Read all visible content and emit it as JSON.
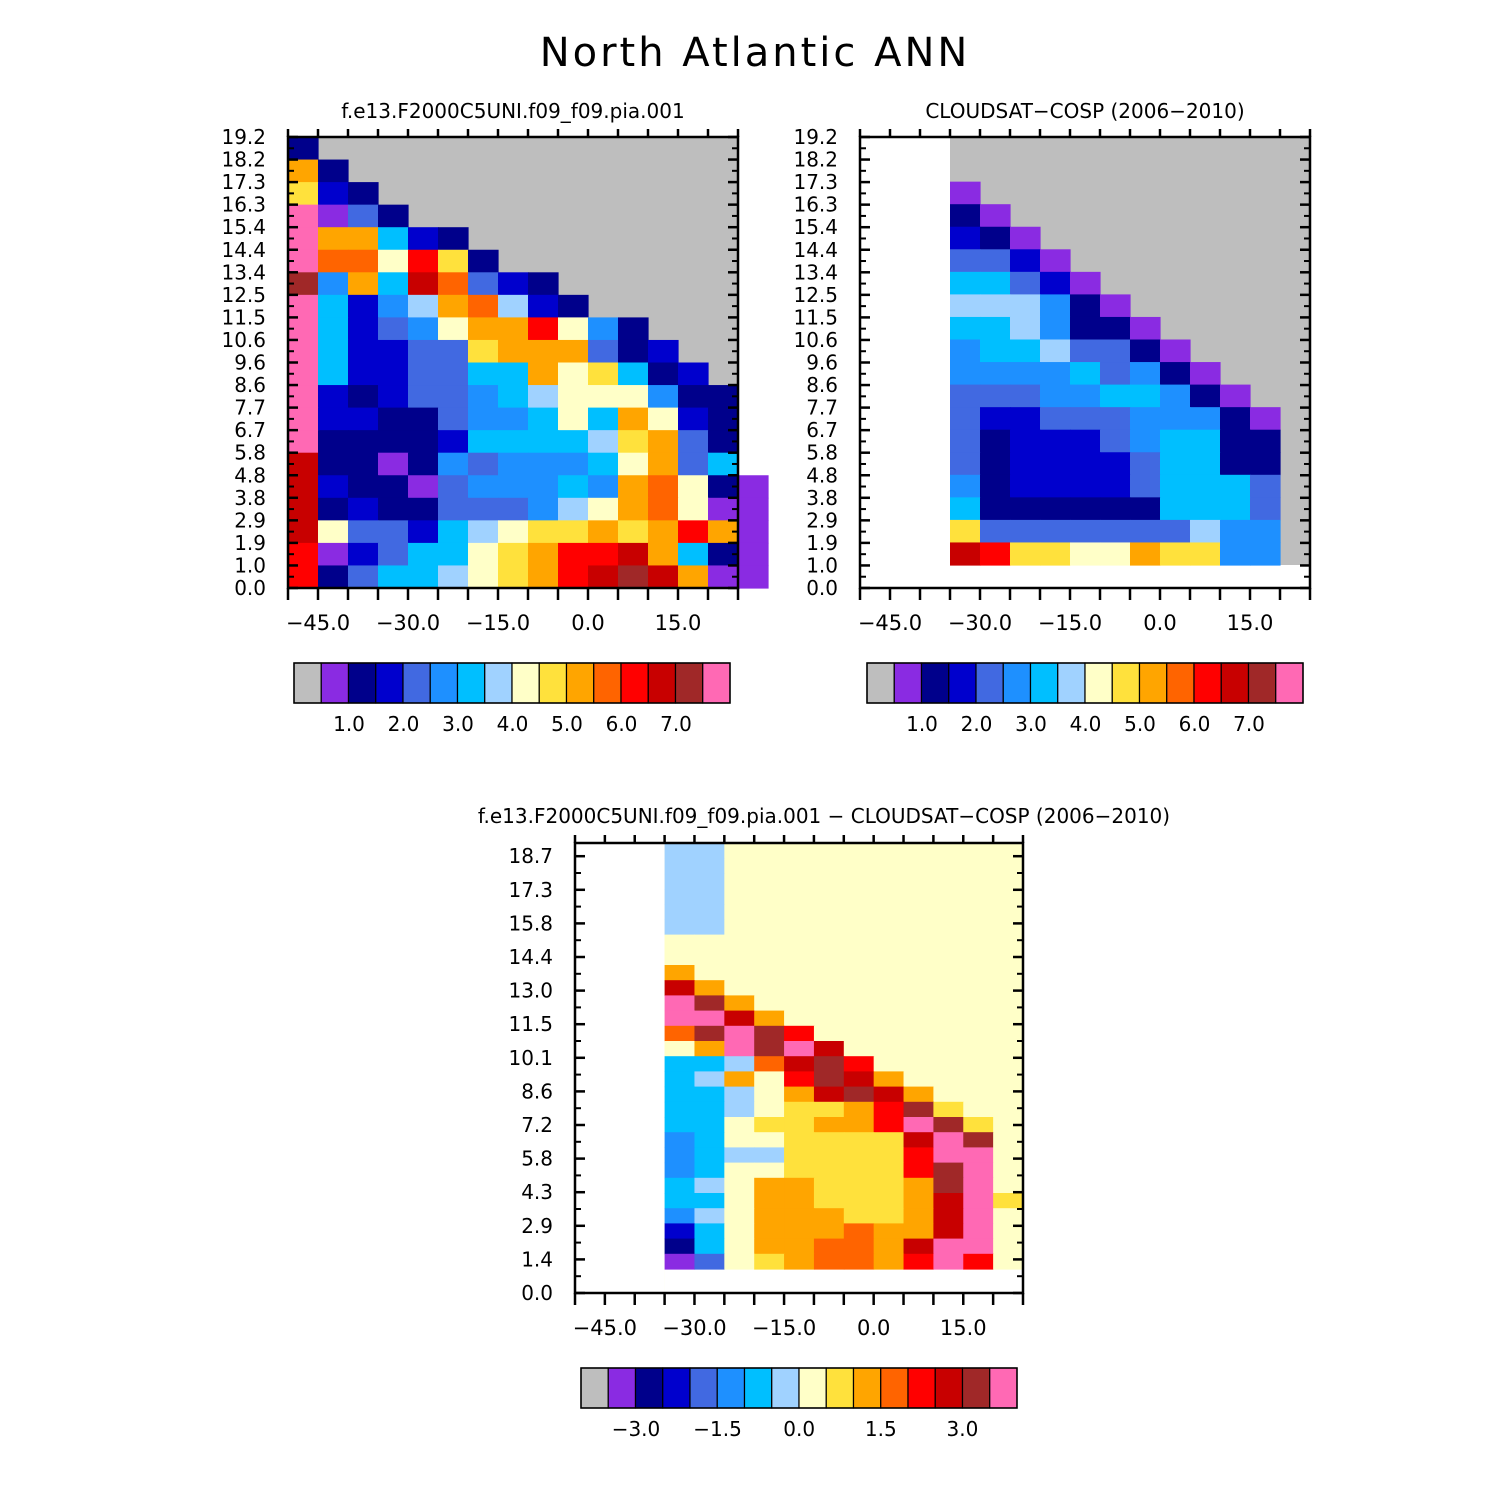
{
  "title": "North Atlantic ANN",
  "colors": {
    "missing": "#bebebe",
    "palette": [
      "#8a2be2",
      "#00008b",
      "#0000cd",
      "#4169e1",
      "#1e90ff",
      "#00bfff",
      "#a0d2ff",
      "#ffffc8",
      "#ffe13c",
      "#ffa500",
      "#ff6400",
      "#ff0000",
      "#c80000",
      "#a02828",
      "#ff69b4"
    ]
  },
  "chart_data": [
    {
      "id": "model",
      "type": "heatmap",
      "title": "f.e13.F2000C5UNI.f09_f09.pia.001",
      "xticks": [
        "−45.0",
        "−30.0",
        "−15.0",
        "0.0",
        "15.0"
      ],
      "xtick_values": [
        -45,
        -30,
        -15,
        0,
        15
      ],
      "xlim": [
        -50,
        25
      ],
      "yticks": [
        "19.2",
        "18.2",
        "17.3",
        "16.3",
        "15.4",
        "14.4",
        "13.4",
        "12.5",
        "11.5",
        "10.6",
        "9.6",
        "8.6",
        "7.7",
        "6.7",
        "5.8",
        "4.8",
        "3.8",
        "2.9",
        "1.9",
        "1.0",
        "0.0"
      ],
      "colorbar": {
        "labels": [
          "1.0",
          "2.0",
          "3.0",
          "4.0",
          "5.0",
          "6.0",
          "7.0"
        ]
      },
      "x0": -50,
      "dx": 5,
      "y_start": 15,
      "rows": [
        "1",
        "9 1",
        "8 2 1",
        "14 0 3 1",
        "14 9 9 5 2 1",
        "14 10 10 7 11 8 1",
        "13 4 9 5 12 10 3 2 1",
        "14 5 2 4 6 9 10 6 2 1",
        "14 5 2 3 4 7 9 9 11 7 4 1",
        "14 5 2 2 3 3 8 9 9 9 3 1 2",
        "14 5 2 2 3 3 5 5 9 7 8 5 1 2",
        "14 2 1 2 3 3 4 5 6 7 7 7 4 1 1",
        "14 2 2 1 1 3 4 4 5 7 5 9 7 2 1",
        "14 1 1 1 1 2 5 5 5 5 6 8 9 3 1",
        "12 1 1 0 1 4 3 4 4 4 5 7 9 3 5",
        "12 2 1 1 0 3 4 4 4 5 4 9 10 7 1 0",
        "12 1 2 1 1 3 3 3 4 6 7 9 10 7 0 0",
        "12 7 3 3 2 5 6 7 8 8 9 8 9 11 9 0",
        "11 0 2 3 5 5 7 8 9 11 11 12 9 5 1 0",
        "11 1 3 5 5 6 7 8 9 11 12 13 12 9 0 0"
      ]
    },
    {
      "id": "obs",
      "type": "heatmap",
      "title": "CLOUDSAT−COSP (2006−2010)",
      "xticks": [
        "−45.0",
        "−30.0",
        "−15.0",
        "0.0",
        "15.0"
      ],
      "xtick_values": [
        -45,
        -30,
        -15,
        0,
        15
      ],
      "xlim": [
        -50,
        25
      ],
      "yticks": [
        "19.2",
        "18.2",
        "17.3",
        "16.3",
        "15.4",
        "14.4",
        "13.4",
        "12.5",
        "11.5",
        "10.6",
        "9.6",
        "8.6",
        "7.7",
        "6.7",
        "5.8",
        "4.8",
        "3.8",
        "2.9",
        "1.9",
        "1.0",
        "0.0"
      ],
      "colorbar": {
        "labels": [
          "1.0",
          "2.0",
          "3.0",
          "4.0",
          "5.0",
          "6.0",
          "7.0"
        ]
      },
      "x0": -35,
      "dx": 5,
      "y_start": 8,
      "rows": [
        "0",
        "1 0",
        "2 1 0",
        "3 3 2 0",
        "5 5 3 2 0",
        "6 6 6 4 1 0",
        "5 5 6 4 1 1 0",
        "4 5 5 6 3 3 1 0",
        "4 4 4 4 5 3 4 1 0",
        "3 3 3 4 4 5 5 4 1 0",
        "3 2 2 3 3 3 4 4 4 1 0",
        "3 1 2 2 2 3 4 5 5 1 1",
        "3 1 2 2 2 2 3 5 5 1 1",
        "4 1 2 2 2 2 3 5 5 5 3",
        "5 1 1 1 1 1 1 5 5 5 3",
        "8 3 3 3 3 3 3 3 6 4 4",
        "12 11 8 8 7 7 9 8 8 4 4"
      ]
    },
    {
      "id": "diff",
      "type": "heatmap",
      "title": "f.e13.F2000C5UNI.f09_f09.pia.001 − CLOUDSAT−COSP (2006−2010)",
      "xticks": [
        "−45.0",
        "−30.0",
        "−15.0",
        "0.0",
        "15.0"
      ],
      "xtick_values": [
        -45,
        -30,
        -15,
        0,
        15
      ],
      "xlim": [
        -50,
        25
      ],
      "yticks": [
        "18.7",
        "17.3",
        "15.8",
        "14.4",
        "13.0",
        "11.5",
        "10.1",
        "8.6",
        "7.2",
        "5.8",
        "4.3",
        "2.9",
        "1.4",
        "0.0"
      ],
      "colorbar": {
        "labels": [
          "−3.0",
          "−1.5",
          "0.0",
          "1.5",
          "3.0"
        ]
      },
      "x0": -35,
      "dx": 5,
      "y_start": 0,
      "rows": [
        "6 6 7 7 7 7 7 7 7 7 7 7",
        "6 6 7 7 7 7 7 7 7 7 7 7",
        "6 6 7 7 7 7 7 7 7 7 7 7",
        "6 6 7 7 7 7 7 7 7 7 7 7",
        "6 6 7 7 7 7 7 7 7 7 7 7",
        "6 6 7 7 7 7 7 7 7 7 7 7",
        "7 7 7 7 7 7 7 7 7 7 7 7",
        "7 7 7 7 7 7 7 7 7 7 7 7",
        "9 7 7 7 7 7 7 7 7 7 7 7",
        "12 9 7 7 7 7 7 7 7 7 7 7",
        "14 13 9 7 7 7 7 7 7 7 7 7",
        "14 14 12 9 7 7 7 7 7 7 7 7",
        "10 13 14 13 11 7 7 7 7 7 7 7",
        "7 9 14 13 14 12 7 7 7 7 7 7",
        "5 5 6 10 12 13 11 7 7 7 7 7",
        "5 6 9 7 11 13 12 9 7 7 7 7",
        "5 5 6 7 9 12 13 12 9 7 7 7",
        "5 5 6 7 8 8 9 11 13 8 7 7",
        "5 5 7 8 8 9 9 11 14 13 8 7",
        "4 5 7 7 8 8 8 8 12 14 13 7",
        "4 5 6 6 8 8 8 8 11 14 14 7",
        "4 5 7 7 8 8 8 8 11 13 14 7",
        "5 6 7 9 9 8 8 8 9 13 14 7",
        "5 5 7 9 9 8 8 8 9 12 14 8",
        "4 6 7 9 9 9 8 8 9 12 14 7",
        "2 5 7 9 9 9 10 9 9 12 14 7",
        "1 5 7 9 9 10 10 9 12 14 14 7",
        "0 3 7 8 9 10 10 9 11 14 11 7"
      ]
    }
  ]
}
